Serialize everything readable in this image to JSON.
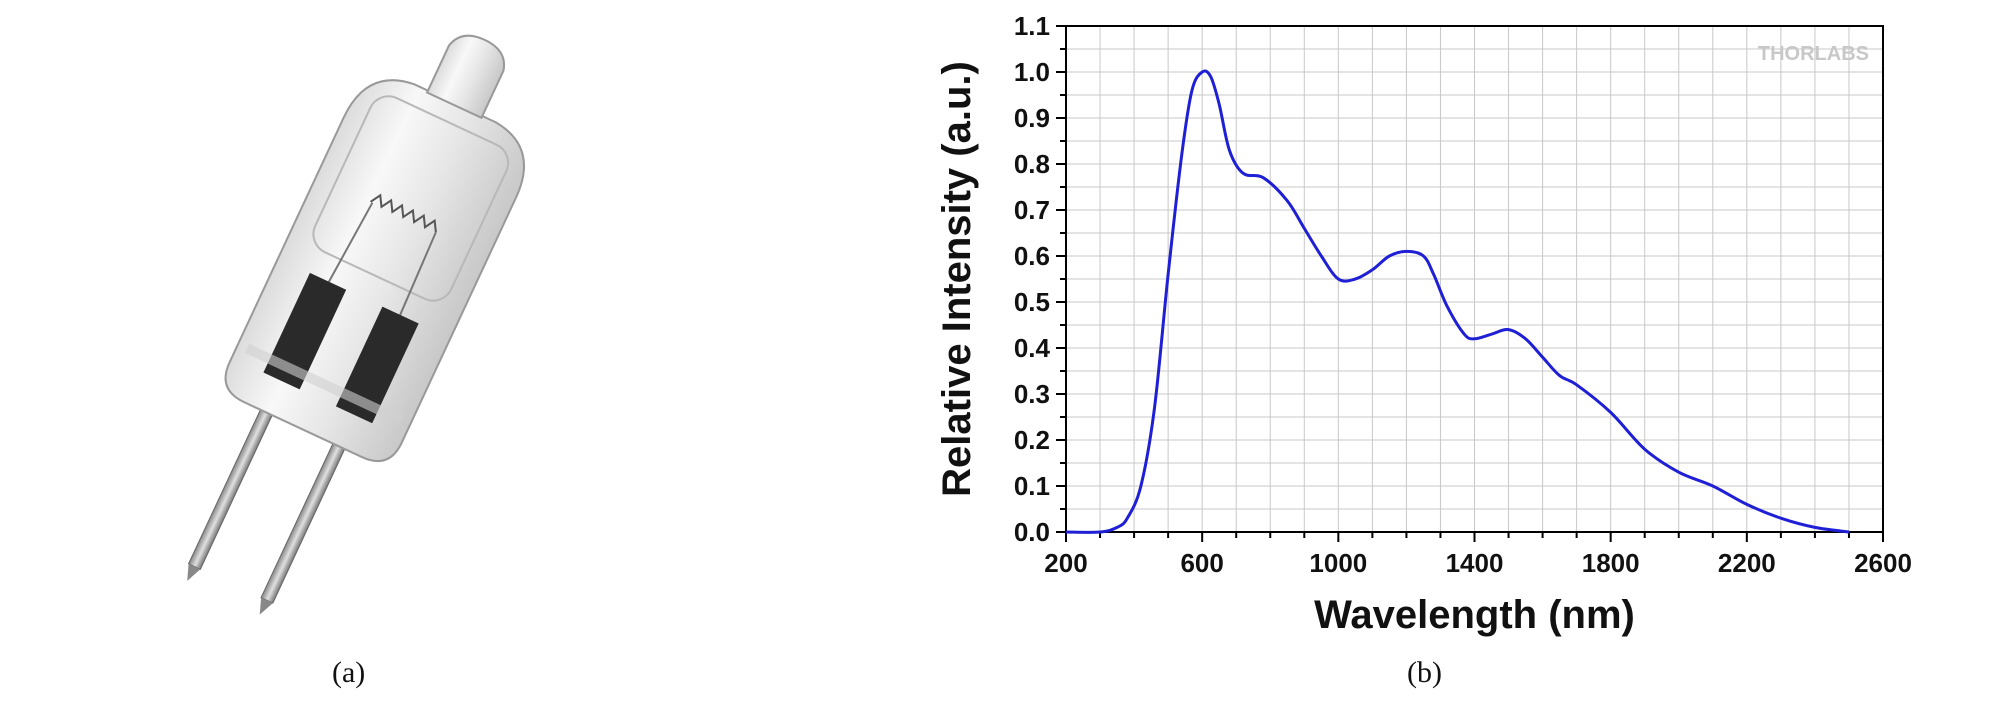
{
  "captions": {
    "a": "(a)",
    "b": "(b)"
  },
  "watermark": "THORLABS",
  "chart_data": {
    "type": "line",
    "title": "",
    "xlabel": "Wavelength (nm)",
    "ylabel": "Relative Intensity (a.u.)",
    "xlim": [
      200,
      2600
    ],
    "ylim": [
      0,
      1.1
    ],
    "xticks": [
      200,
      600,
      1000,
      1400,
      1800,
      2200,
      2600
    ],
    "yticks": [
      0.0,
      0.1,
      0.2,
      0.3,
      0.4,
      0.5,
      0.6,
      0.7,
      0.8,
      0.9,
      1.0,
      1.1
    ],
    "xtick_labels": [
      "200",
      "600",
      "1000",
      "1400",
      "1800",
      "2200",
      "2600"
    ],
    "ytick_labels": [
      "0.0",
      "0.1",
      "0.2",
      "0.3",
      "0.4",
      "0.5",
      "0.6",
      "0.7",
      "0.8",
      "0.9",
      "1.0",
      "1.1"
    ],
    "grid": true,
    "line_color": "#1f1fd6",
    "series": [
      {
        "x": [
          200,
          300,
          350,
          380,
          420,
          460,
          500,
          540,
          570,
          600,
          625,
          650,
          680,
          720,
          780,
          850,
          900,
          950,
          1000,
          1050,
          1100,
          1150,
          1200,
          1250,
          1280,
          1320,
          1370,
          1400,
          1450,
          1500,
          1550,
          1600,
          1650,
          1700,
          1800,
          1900,
          2000,
          2100,
          2200,
          2300,
          2400,
          2500
        ],
        "y": [
          0.0,
          0.0,
          0.01,
          0.03,
          0.1,
          0.27,
          0.56,
          0.82,
          0.96,
          1.0,
          0.99,
          0.93,
          0.83,
          0.78,
          0.77,
          0.72,
          0.66,
          0.6,
          0.55,
          0.55,
          0.57,
          0.6,
          0.61,
          0.6,
          0.56,
          0.49,
          0.43,
          0.42,
          0.43,
          0.44,
          0.42,
          0.38,
          0.34,
          0.32,
          0.26,
          0.18,
          0.13,
          0.1,
          0.06,
          0.03,
          0.01,
          0.0
        ]
      }
    ]
  }
}
